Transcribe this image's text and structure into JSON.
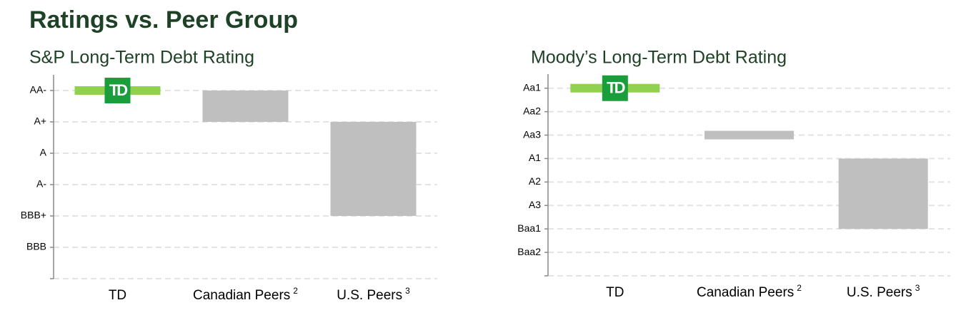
{
  "title": "Ratings vs. Peer Group",
  "chart_data": [
    {
      "type": "range-bar",
      "title": "S&P Long-Term Debt Rating",
      "categories": [
        "TD",
        "Canadian Peers",
        "U.S. Peers"
      ],
      "category_notes": [
        null,
        "2",
        "3"
      ],
      "ranges": [
        [
          6,
          6
        ],
        [
          5,
          6
        ],
        [
          2,
          5
        ]
      ],
      "colors": [
        "#92d050",
        "#bfbfbf",
        "#bfbfbf"
      ],
      "ylim": [
        0,
        6.5
      ],
      "yticks": [
        {
          "value": 6,
          "label": "AA-"
        },
        {
          "value": 5,
          "label": "A+"
        },
        {
          "value": 4,
          "label": "A"
        },
        {
          "value": 3,
          "label": "A-"
        },
        {
          "value": 2,
          "label": "BBB+"
        },
        {
          "value": 1,
          "label": "BBB"
        },
        {
          "value": 0,
          "label": ""
        }
      ],
      "grid": true
    },
    {
      "type": "range-bar",
      "title": "Moody’s Long-Term Debt Rating",
      "categories": [
        "TD",
        "Canadian Peers",
        "U.S. Peers"
      ],
      "category_notes": [
        null,
        "2",
        "3"
      ],
      "ranges": [
        [
          8,
          8
        ],
        [
          6,
          6
        ],
        [
          2,
          5
        ]
      ],
      "colors": [
        "#92d050",
        "#bfbfbf",
        "#bfbfbf"
      ],
      "ylim": [
        0,
        8.6
      ],
      "yticks": [
        {
          "value": 8,
          "label": "Aa1"
        },
        {
          "value": 7,
          "label": "Aa2"
        },
        {
          "value": 6,
          "label": "Aa3"
        },
        {
          "value": 5,
          "label": "A1"
        },
        {
          "value": 4,
          "label": "A2"
        },
        {
          "value": 3,
          "label": "A3"
        },
        {
          "value": 2,
          "label": "Baa1"
        },
        {
          "value": 1,
          "label": "Baa2"
        },
        {
          "value": 0,
          "label": ""
        }
      ],
      "grid": true
    }
  ]
}
